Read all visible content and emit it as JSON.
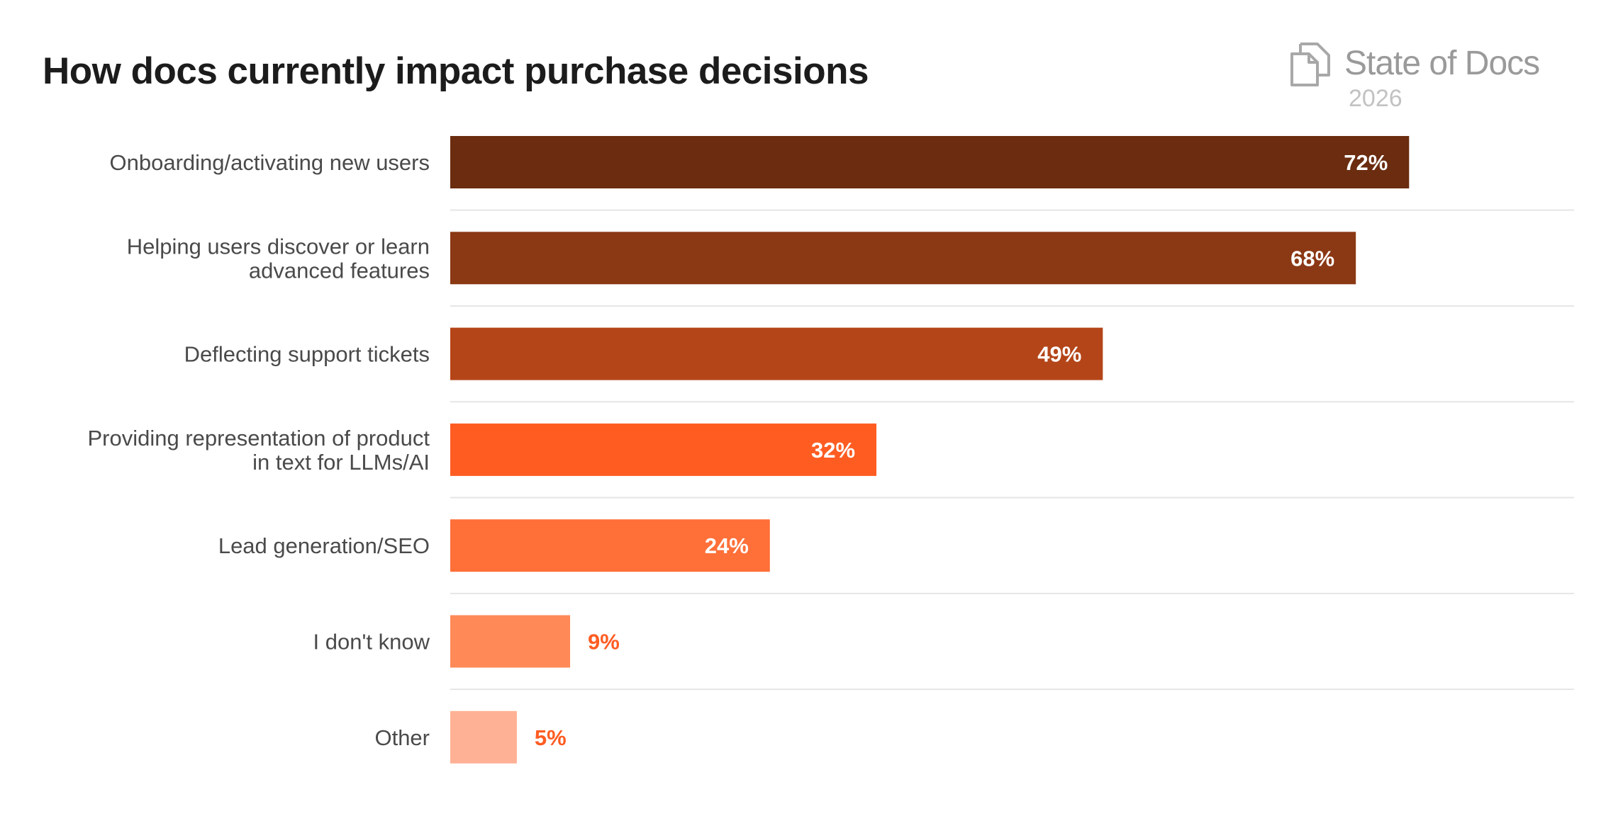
{
  "brand": {
    "name": "State of Docs",
    "year": "2026",
    "logo_icon": "document-stack-icon",
    "name_color": "#9a9a9a",
    "year_color": "#c2c2c2"
  },
  "chart_data": {
    "type": "bar",
    "orientation": "horizontal",
    "title": "How docs currently impact purchase decisions",
    "categories": [
      [
        "Onboarding/activating new users"
      ],
      [
        "Helping users discover or learn",
        "advanced features"
      ],
      [
        "Deflecting support tickets"
      ],
      [
        "Providing representation of product",
        "in text for LLMs/AI"
      ],
      [
        "Lead generation/SEO"
      ],
      [
        "I don't know"
      ],
      [
        "Other"
      ]
    ],
    "values": [
      72,
      68,
      49,
      32,
      24,
      9,
      5
    ],
    "value_labels": [
      "72%",
      "68%",
      "49%",
      "32%",
      "24%",
      "9%",
      "5%"
    ],
    "unit": "%",
    "xlim": [
      0,
      78
    ],
    "xlabel": "",
    "ylabel": "",
    "grid": "horizontal separators",
    "legend": "none",
    "colors": [
      "#6b2c10",
      "#8b3814",
      "#b44518",
      "#ff5c22",
      "#ff6f38",
      "#ff8a58",
      "#ffb195"
    ],
    "label_color_inside": "#ffffff",
    "label_color_outside": "#ff5c22",
    "separator_color": "#e6e6e6"
  }
}
